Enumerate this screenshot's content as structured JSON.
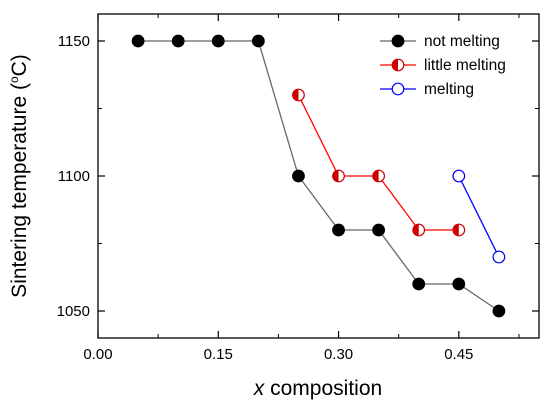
{
  "chart_data": {
    "type": "line",
    "xlabel_var": "x",
    "xlabel_rest": " composition",
    "ylabel": "Sintering temperature (",
    "ylabel_unit_sup": "o",
    "ylabel_unit": "C)",
    "xlim": [
      0.0,
      0.55
    ],
    "ylim": [
      1040,
      1160
    ],
    "xticks": [
      "0.00",
      "0.15",
      "0.30",
      "0.45"
    ],
    "xtick_values": [
      0.0,
      0.15,
      0.3,
      0.45
    ],
    "xminor_values": [
      0.075,
      0.225,
      0.375,
      0.525
    ],
    "yticks": [
      "1050",
      "1100",
      "1150"
    ],
    "ytick_values": [
      1050,
      1100,
      1150
    ],
    "yminor_values": [
      1075,
      1125
    ],
    "grid": false,
    "legend_position": "top-right",
    "series": [
      {
        "name": "not melting",
        "marker": "filled",
        "line_color": "#666666",
        "marker_color": "#000000",
        "x": [
          0.05,
          0.1,
          0.15,
          0.2,
          0.25,
          0.3,
          0.35,
          0.4,
          0.45,
          0.5
        ],
        "y": [
          1150,
          1150,
          1150,
          1150,
          1100,
          1080,
          1080,
          1060,
          1060,
          1050
        ]
      },
      {
        "name": "little melting",
        "marker": "half",
        "line_color": "#ff0000",
        "marker_color": "#cc0000",
        "x": [
          0.25,
          0.3,
          0.35,
          0.4,
          0.45
        ],
        "y": [
          1130,
          1100,
          1100,
          1080,
          1080
        ]
      },
      {
        "name": "melting",
        "marker": "open",
        "line_color": "#0000ff",
        "marker_color": "#0000ff",
        "x": [
          0.45,
          0.5
        ],
        "y": [
          1100,
          1070
        ]
      }
    ]
  }
}
